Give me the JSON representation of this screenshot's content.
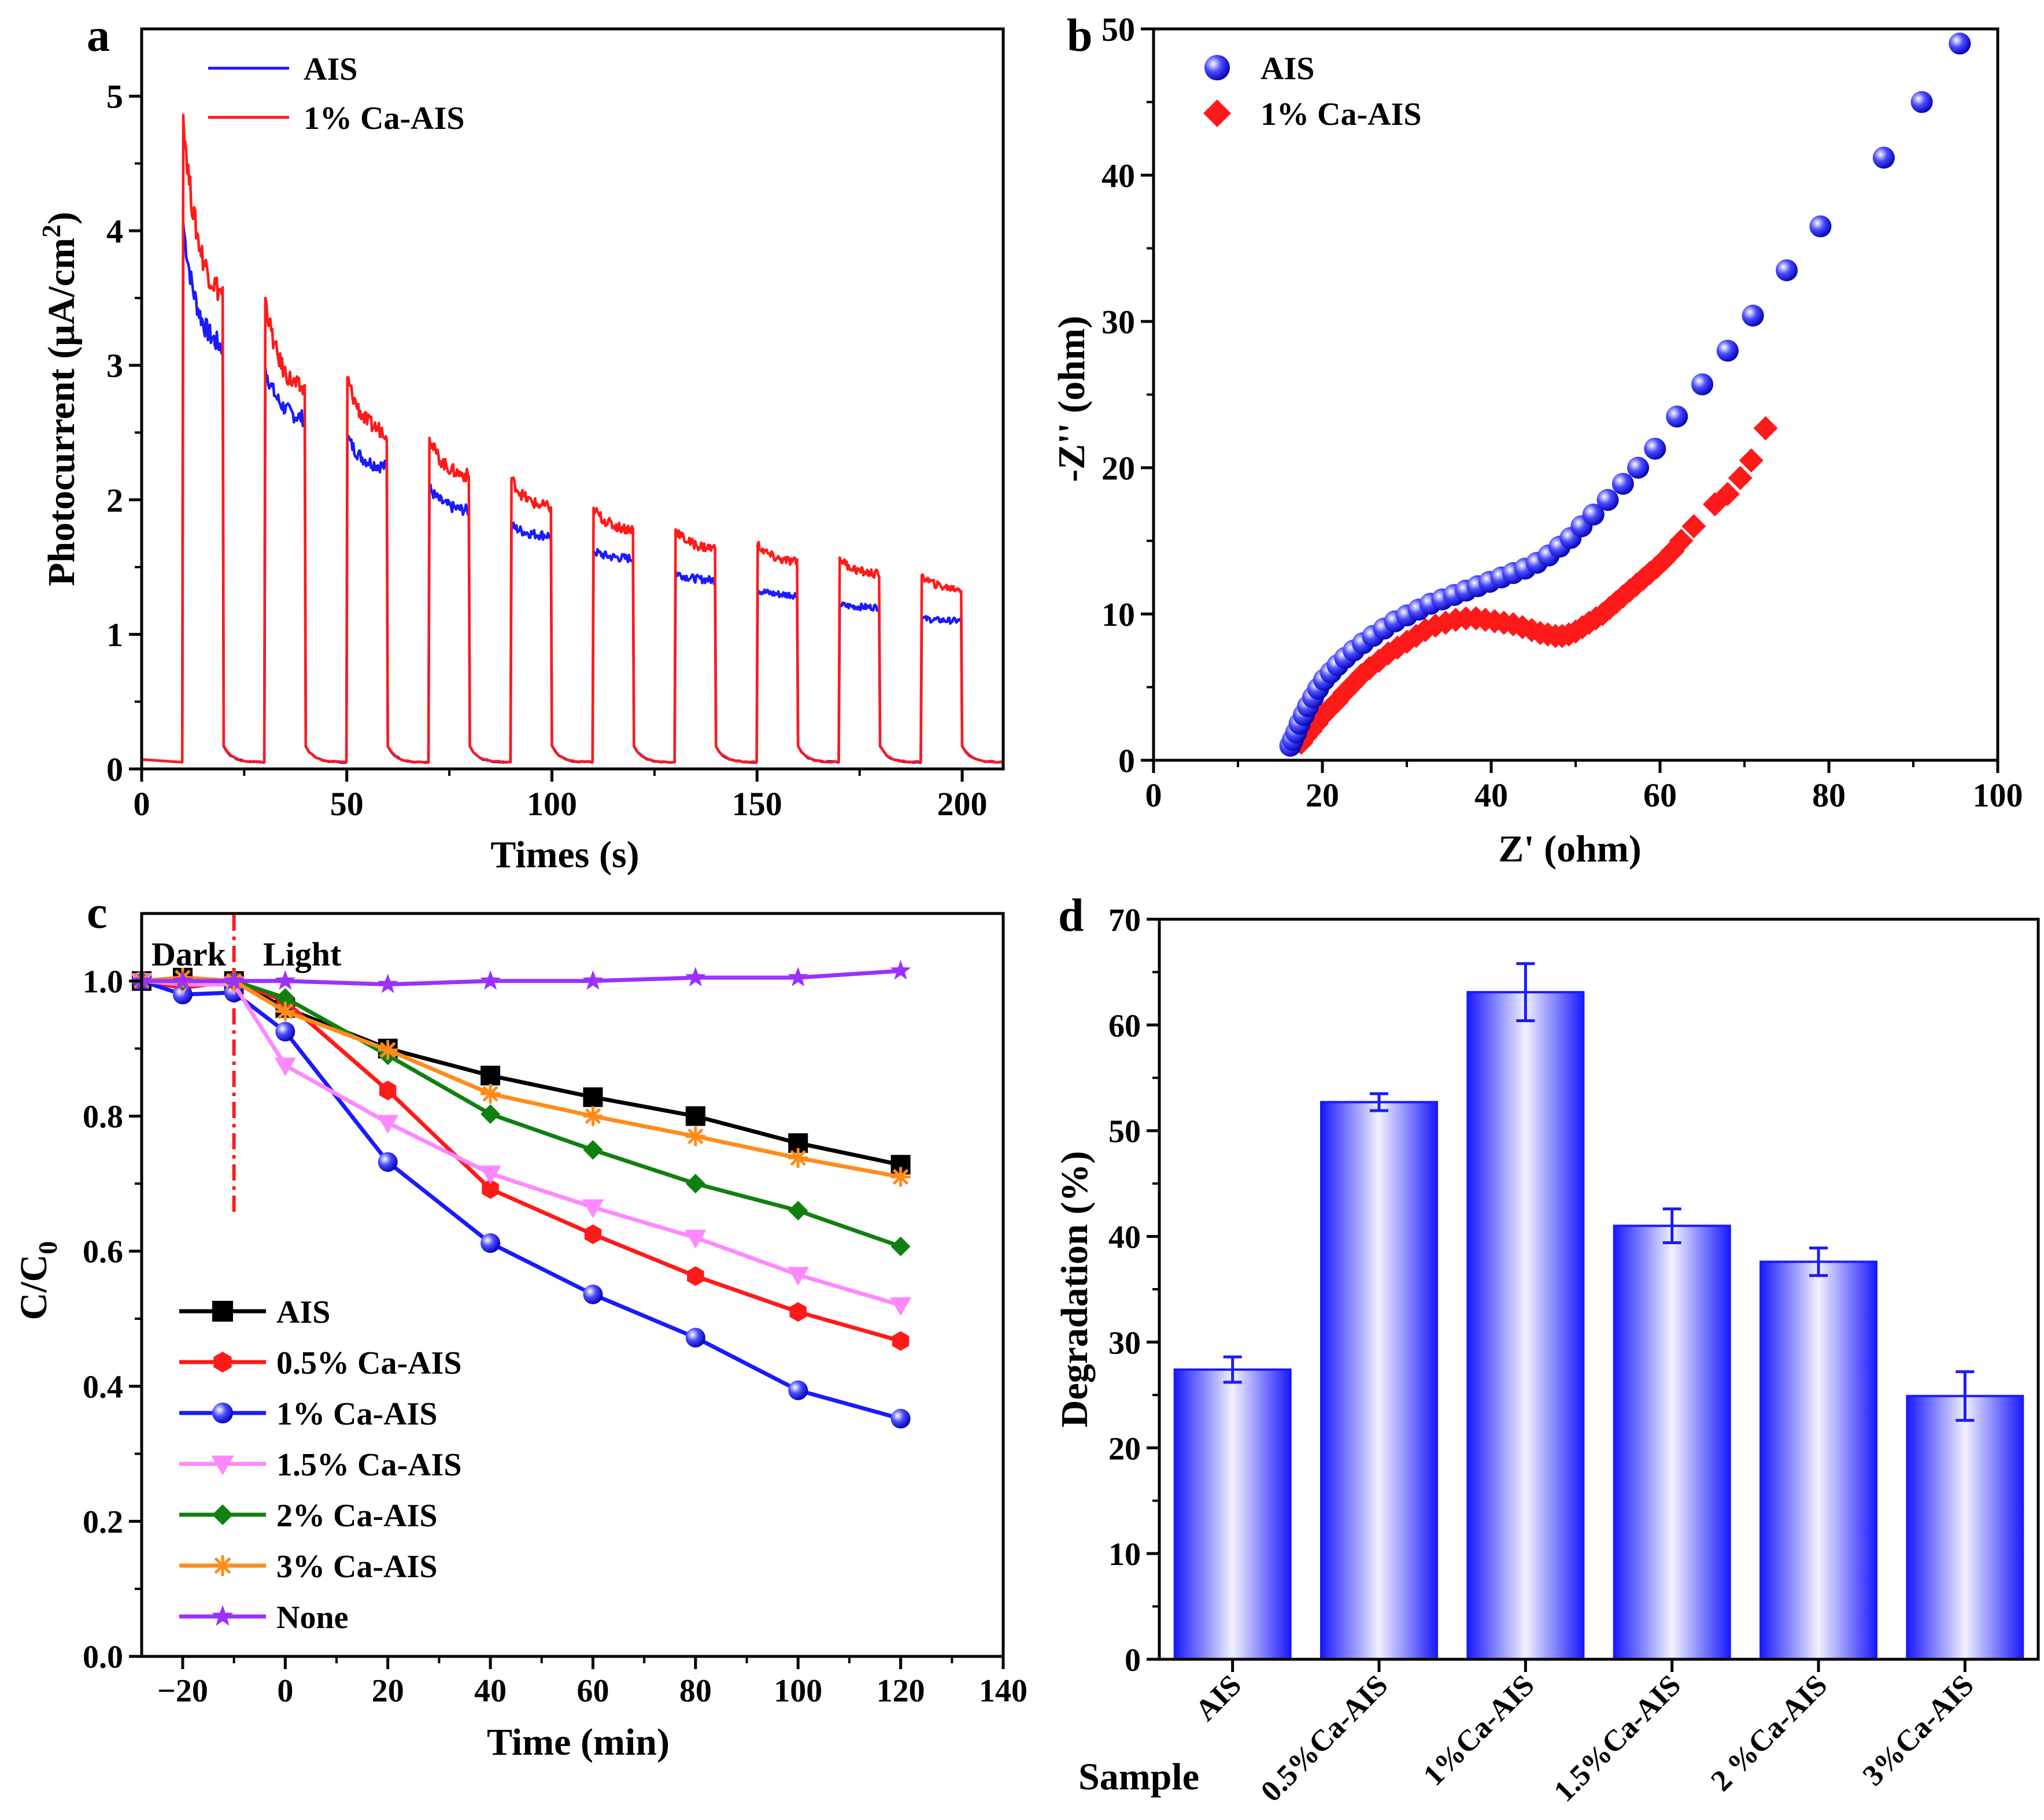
{
  "chart_data": [
    {
      "panel": "a",
      "type": "line",
      "xlabel": "Times (s)",
      "ylabel": "Photocurrent (μA/cm²)",
      "ylabel_main": "Photocurrent (μA/cm",
      "ylabel_sup": "2",
      "ylabel_end": ")",
      "xlim": [
        0,
        210
      ],
      "ylim": [
        0,
        5.5
      ],
      "xticks": [
        0,
        50,
        100,
        150,
        200
      ],
      "yticks": [
        0,
        1,
        2,
        3,
        4,
        5
      ],
      "light_on_times": [
        10,
        30,
        50,
        70,
        90,
        110,
        130,
        150,
        170,
        190
      ],
      "series": [
        {
          "name": "AIS",
          "color": "#1a1aff",
          "dark_level": 0.05,
          "peaks": [
            4.05,
            2.98,
            2.47,
            2.09,
            1.81,
            1.62,
            1.46,
            1.33,
            1.22,
            1.12
          ],
          "ends": [
            3.08,
            2.58,
            2.23,
            1.91,
            1.73,
            1.56,
            1.4,
            1.29,
            1.2,
            1.1
          ]
        },
        {
          "name": "1% Ca-AIS",
          "color": "#ff1a1a",
          "dark_level": 0.05,
          "peaks": [
            4.86,
            3.5,
            2.91,
            2.46,
            2.16,
            1.94,
            1.78,
            1.67,
            1.57,
            1.44
          ],
          "ends": [
            3.45,
            2.77,
            2.48,
            2.16,
            1.93,
            1.77,
            1.63,
            1.53,
            1.44,
            1.33
          ]
        }
      ]
    },
    {
      "panel": "b",
      "type": "scatter",
      "xlabel": "Z' (ohm)",
      "ylabel": "-Z'' (ohm)",
      "xlim": [
        0,
        100
      ],
      "ylim": [
        0,
        50
      ],
      "xticks": [
        0,
        20,
        40,
        60,
        80,
        100
      ],
      "yticks": [
        0,
        10,
        20,
        30,
        40,
        50
      ],
      "series": [
        {
          "name": "AIS",
          "color": "#1a1aff",
          "marker": "circle",
          "x": [
            16.2,
            16.5,
            16.9,
            17.3,
            17.8,
            18.3,
            18.9,
            19.5,
            20.2,
            21.0,
            21.8,
            22.7,
            23.7,
            24.8,
            26.0,
            27.3,
            28.6,
            30.0,
            31.4,
            32.8,
            34.2,
            35.6,
            37.0,
            38.4,
            39.8,
            41.2,
            42.6,
            44.0,
            45.4,
            46.8,
            48.1,
            49.4,
            50.7,
            52.1,
            53.8,
            55.6,
            57.4,
            59.4,
            62.0,
            65.0,
            68.0,
            71.0,
            75.0,
            79.0,
            86.5,
            91.0,
            95.5
          ],
          "y": [
            1.0,
            1.4,
            1.9,
            2.5,
            3.1,
            3.7,
            4.3,
            4.9,
            5.5,
            6.0,
            6.5,
            7.0,
            7.5,
            8.0,
            8.5,
            9.0,
            9.5,
            9.9,
            10.3,
            10.7,
            11.0,
            11.3,
            11.6,
            11.9,
            12.2,
            12.5,
            12.8,
            13.1,
            13.5,
            14.0,
            14.6,
            15.2,
            16.0,
            16.8,
            17.8,
            18.9,
            20.0,
            21.3,
            23.5,
            25.7,
            28.0,
            30.4,
            33.5,
            36.5,
            41.2,
            45.0,
            49.0
          ]
        },
        {
          "name": "1% Ca-AIS",
          "color": "#ff1a1a",
          "marker": "diamond",
          "x": [
            17.5,
            18.0,
            18.6,
            19.3,
            20.0,
            20.8,
            21.7,
            22.6,
            23.6,
            24.6,
            25.6,
            26.7,
            27.8,
            28.9,
            30.0,
            31.1,
            32.2,
            33.4,
            34.6,
            35.8,
            37.0,
            38.2,
            39.3,
            40.4,
            41.5,
            42.6,
            43.7,
            44.8,
            45.8,
            46.7,
            47.6,
            48.4,
            49.2,
            50.0,
            50.8,
            51.6,
            52.4,
            53.2,
            54.0,
            54.8,
            55.6,
            56.4,
            57.2,
            58.0,
            58.8,
            59.6,
            60.5,
            61.5,
            62.5,
            64.0,
            66.5,
            68.0,
            69.5,
            70.8,
            72.5
          ],
          "y": [
            1.2,
            1.6,
            2.0,
            2.5,
            3.0,
            3.5,
            4.0,
            4.6,
            5.2,
            5.8,
            6.3,
            6.8,
            7.3,
            7.7,
            8.1,
            8.5,
            8.9,
            9.2,
            9.4,
            9.6,
            9.7,
            9.7,
            9.6,
            9.5,
            9.4,
            9.3,
            9.1,
            8.9,
            8.7,
            8.6,
            8.5,
            8.5,
            8.6,
            8.8,
            9.1,
            9.4,
            9.7,
            10.0,
            10.4,
            10.8,
            11.2,
            11.6,
            12.0,
            12.4,
            12.8,
            13.2,
            13.7,
            14.3,
            15.0,
            16.0,
            17.5,
            18.2,
            19.3,
            20.5,
            22.7
          ]
        }
      ]
    },
    {
      "panel": "c",
      "type": "line",
      "xlabel": "Time (min)",
      "ylabel": "C/C0",
      "ylabel_main": "C/C",
      "ylabel_sub": "0",
      "xlim": [
        -28,
        140
      ],
      "ylim": [
        0,
        1.1
      ],
      "xticks": [
        -20,
        0,
        20,
        40,
        60,
        80,
        100,
        120,
        140
      ],
      "xtick_labels": [
        "−20",
        "0",
        "20",
        "40",
        "60",
        "80",
        "100",
        "120",
        "140"
      ],
      "yticks": [
        0,
        0.2,
        0.4,
        0.6,
        0.8,
        1.0
      ],
      "ytick_labels": [
        "0.0",
        "0.2",
        "0.4",
        "0.6",
        "0.8",
        "1.0"
      ],
      "divider_x": -10,
      "dark_label": "Dark",
      "light_label": "Light",
      "x": [
        -30,
        -20,
        -10,
        0,
        20,
        40,
        60,
        80,
        100,
        120
      ],
      "series": [
        {
          "name": "AIS",
          "color": "#000000",
          "marker": "square",
          "values": [
            1.0,
            1.005,
            1.0,
            0.96,
            0.9,
            0.86,
            0.828,
            0.8,
            0.76,
            0.728
          ]
        },
        {
          "name": "0.5% Ca-AIS",
          "color": "#ff1a1a",
          "marker": "hexagon",
          "values": [
            1.0,
            0.99,
            1.0,
            0.97,
            0.838,
            0.692,
            0.625,
            0.563,
            0.51,
            0.467
          ]
        },
        {
          "name": "1% Ca-AIS",
          "color": "#1a1aff",
          "marker": "circle",
          "values": [
            1.0,
            0.98,
            0.983,
            0.925,
            0.732,
            0.612,
            0.536,
            0.472,
            0.394,
            0.352
          ]
        },
        {
          "name": "1.5% Ca-AIS",
          "color": "#ff88ff",
          "marker": "triangle-down",
          "values": [
            1.0,
            0.995,
            0.995,
            0.875,
            0.79,
            0.715,
            0.665,
            0.62,
            0.565,
            0.52
          ]
        },
        {
          "name": "2% Ca-AIS",
          "color": "#108010",
          "marker": "diamond",
          "values": [
            1.0,
            1.0,
            1.0,
            0.975,
            0.89,
            0.803,
            0.75,
            0.7,
            0.66,
            0.607
          ]
        },
        {
          "name": "3% Ca-AIS",
          "color": "#ff8c1a",
          "marker": "asterisk",
          "values": [
            1.0,
            1.005,
            1.0,
            0.955,
            0.898,
            0.833,
            0.8,
            0.77,
            0.738,
            0.71
          ]
        },
        {
          "name": "None",
          "color": "#9b30ff",
          "marker": "star",
          "values": [
            1.0,
            1.0,
            1.0,
            1.0,
            0.995,
            1.0,
            1.0,
            1.005,
            1.005,
            1.015
          ]
        }
      ]
    },
    {
      "panel": "d",
      "type": "bar",
      "xlabel": "Sample",
      "ylabel": "Degradation (%)",
      "ylim": [
        0,
        70
      ],
      "yticks": [
        0,
        10,
        20,
        30,
        40,
        50,
        60,
        70
      ],
      "categories": [
        "AIS",
        "0.5%Ca-AIS",
        "1%Ca-AIS",
        "1.5%Ca-AIS",
        "2 %Ca-AIS",
        "3%Ca-AIS"
      ],
      "values": [
        27.4,
        52.7,
        63.1,
        41.0,
        37.6,
        24.9
      ],
      "errors": [
        1.2,
        0.8,
        2.7,
        1.6,
        1.3,
        2.3
      ],
      "color": "#1a1aff"
    }
  ],
  "panel_labels": [
    "a",
    "b",
    "c",
    "d"
  ]
}
